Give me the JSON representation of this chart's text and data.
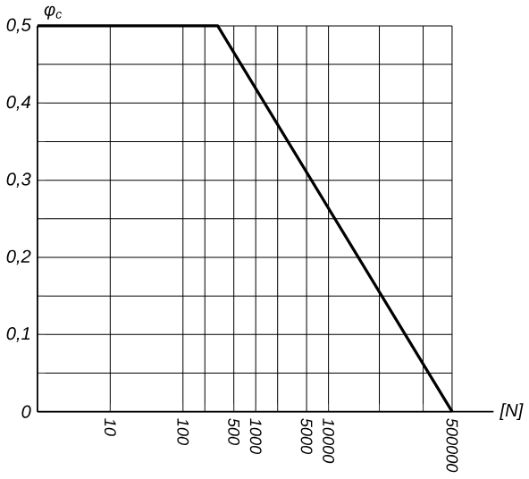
{
  "chart_data": {
    "type": "line",
    "xlabel": "[N]",
    "ylabel": "φ$_{c}$",
    "log": "x",
    "grid": true,
    "marker": "none",
    "line_style": "solid",
    "x": [
      1,
      300,
      500000
    ],
    "series": [
      {
        "color": "#000000",
        "values": [
          0.5,
          0.5,
          0
        ]
      }
    ],
    "xlim": [
      1,
      500000
    ],
    "xticks": [
      10,
      100,
      {
        "value": 200,
        "label": null
      },
      500,
      1000,
      {
        "value": 2000,
        "label": null
      },
      5000,
      10000,
      {
        "value": 50000,
        "label": null
      },
      {
        "value": 200000,
        "label": null
      },
      500000
    ],
    "ylim": [
      0,
      0.5
    ],
    "yticks": [
      0,
      {
        "value": 0.05,
        "label": null
      },
      {
        "value": 0.1,
        "label": "0,1"
      },
      {
        "value": 0.15,
        "label": null
      },
      {
        "value": 0.2,
        "label": "0,2"
      },
      {
        "value": 0.25,
        "label": null
      },
      {
        "value": 0.3,
        "label": "0,3"
      },
      {
        "value": 0.35,
        "label": null
      },
      {
        "value": 0.4,
        "label": "0,4"
      },
      {
        "value": 0.45,
        "label": null
      },
      {
        "value": 0.5,
        "label": "0,5"
      }
    ]
  }
}
